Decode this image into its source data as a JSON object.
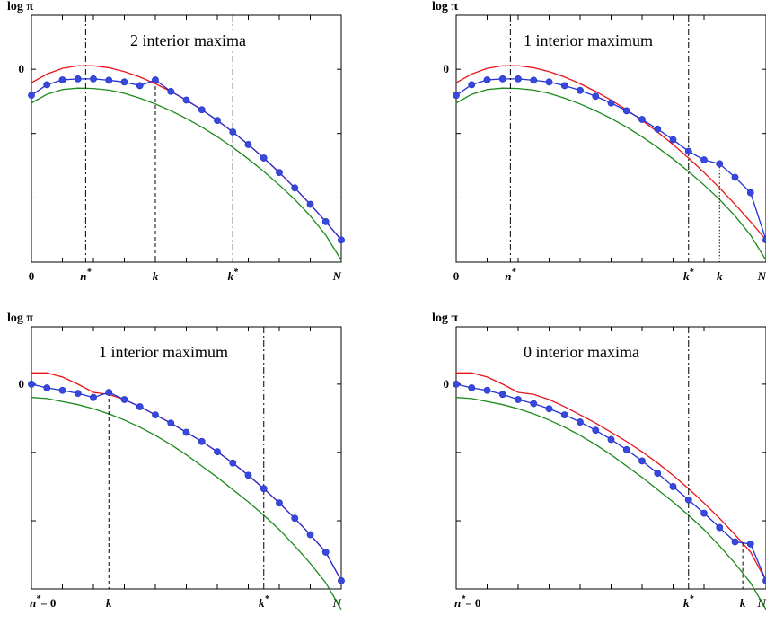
{
  "chart_data": [
    {
      "type": "line",
      "title": "2 interior maxima",
      "ylabel": "log π",
      "x": [
        0,
        1,
        2,
        3,
        4,
        5,
        6,
        7,
        8,
        9,
        10,
        11,
        12,
        13,
        14,
        15,
        16,
        17,
        18,
        19,
        20
      ],
      "ylim": [
        -1.0,
        0.28
      ],
      "ytick_labels": [
        {
          "value": 0,
          "label": "0"
        }
      ],
      "yticks": [
        0,
        -0.333,
        -0.667,
        -1.0
      ],
      "xtick_labels": [
        {
          "value": 0,
          "text": "0",
          "style": "plain"
        },
        {
          "value": 3.5,
          "text": "n*",
          "style": "star"
        },
        {
          "value": 8,
          "text": "k",
          "style": "plain"
        },
        {
          "value": 13,
          "text": "k*",
          "style": "star"
        },
        {
          "value": 20,
          "text": "N",
          "style": "plain"
        }
      ],
      "vlines": [
        {
          "x": 3.5,
          "style": "dashdot",
          "to_curve": false
        },
        {
          "x": 8,
          "style": "dashed",
          "to_curve": true
        },
        {
          "x": 13,
          "style": "dashdot",
          "to_curve": false
        }
      ],
      "series": [
        {
          "color": "#e8141a",
          "markers": false,
          "values": [
            -0.07,
            -0.025,
            0.005,
            0.018,
            0.018,
            0.008,
            -0.012,
            -0.04,
            -0.075,
            -0.115,
            -0.16,
            -0.21,
            -0.265,
            -0.325,
            -0.39,
            -0.46,
            -0.535,
            -0.615,
            -0.7,
            -0.79,
            -0.885
          ]
        },
        {
          "color": "#2030d8",
          "markers": true,
          "values": [
            -0.135,
            -0.08,
            -0.055,
            -0.05,
            -0.05,
            -0.057,
            -0.066,
            -0.085,
            -0.055,
            -0.115,
            -0.16,
            -0.21,
            -0.265,
            -0.325,
            -0.39,
            -0.46,
            -0.535,
            -0.615,
            -0.7,
            -0.79,
            -0.885
          ]
        },
        {
          "color": "#1a8a1a",
          "markers": false,
          "values": [
            -0.175,
            -0.13,
            -0.105,
            -0.098,
            -0.1,
            -0.108,
            -0.125,
            -0.15,
            -0.18,
            -0.215,
            -0.255,
            -0.3,
            -0.35,
            -0.405,
            -0.465,
            -0.53,
            -0.6,
            -0.675,
            -0.76,
            -0.86,
            -0.99
          ]
        }
      ]
    },
    {
      "type": "line",
      "title": "1 interior maximum",
      "ylabel": "log π",
      "x": [
        0,
        1,
        2,
        3,
        4,
        5,
        6,
        7,
        8,
        9,
        10,
        11,
        12,
        13,
        14,
        15,
        16,
        17,
        18,
        19,
        20
      ],
      "ylim": [
        -1.0,
        0.28
      ],
      "ytick_labels": [
        {
          "value": 0,
          "label": "0"
        }
      ],
      "yticks": [
        0,
        -0.333,
        -0.667,
        -1.0
      ],
      "xtick_labels": [
        {
          "value": 0,
          "text": "0",
          "style": "plain"
        },
        {
          "value": 3.5,
          "text": "n*",
          "style": "star"
        },
        {
          "value": 15,
          "text": "k*",
          "style": "star"
        },
        {
          "value": 17,
          "text": "k",
          "style": "plain"
        },
        {
          "value": 20,
          "text": "N",
          "style": "plain"
        }
      ],
      "vlines": [
        {
          "x": 3.5,
          "style": "dashdot",
          "to_curve": false
        },
        {
          "x": 15,
          "style": "dashdot",
          "to_curve": false
        },
        {
          "x": 17,
          "style": "dotted",
          "to_curve": true
        }
      ],
      "series": [
        {
          "color": "#e8141a",
          "markers": false,
          "values": [
            -0.07,
            -0.025,
            0.005,
            0.018,
            0.018,
            0.008,
            -0.012,
            -0.04,
            -0.075,
            -0.115,
            -0.16,
            -0.21,
            -0.265,
            -0.325,
            -0.39,
            -0.46,
            -0.535,
            -0.615,
            -0.7,
            -0.79,
            -0.885
          ]
        },
        {
          "color": "#2030d8",
          "markers": true,
          "values": [
            -0.135,
            -0.08,
            -0.055,
            -0.05,
            -0.05,
            -0.057,
            -0.066,
            -0.085,
            -0.11,
            -0.14,
            -0.175,
            -0.215,
            -0.26,
            -0.31,
            -0.365,
            -0.425,
            -0.47,
            -0.49,
            -0.56,
            -0.64,
            -0.885
          ]
        },
        {
          "color": "#1a8a1a",
          "markers": false,
          "values": [
            -0.175,
            -0.13,
            -0.105,
            -0.098,
            -0.1,
            -0.108,
            -0.125,
            -0.15,
            -0.18,
            -0.215,
            -0.255,
            -0.3,
            -0.35,
            -0.405,
            -0.465,
            -0.53,
            -0.6,
            -0.675,
            -0.76,
            -0.86,
            -0.99
          ]
        }
      ]
    },
    {
      "type": "line",
      "title": "1 interior maximum",
      "ylabel": "log π",
      "x": [
        0,
        1,
        2,
        3,
        4,
        5,
        6,
        7,
        8,
        9,
        10,
        11,
        12,
        13,
        14,
        15,
        16,
        17,
        18,
        19,
        20
      ],
      "ylim": [
        -1.0,
        0.28
      ],
      "ytick_labels": [
        {
          "value": 0,
          "label": "0"
        }
      ],
      "yticks": [
        0,
        -0.333,
        -0.667,
        -1.0
      ],
      "xtick_labels": [
        {
          "value": 0,
          "text": "n*= 0",
          "style": "nzero"
        },
        {
          "value": 5,
          "text": "k",
          "style": "plain"
        },
        {
          "value": 15,
          "text": "k*",
          "style": "star"
        },
        {
          "value": 20,
          "text": "N",
          "style": "plain"
        }
      ],
      "vlines": [
        {
          "x": 5,
          "style": "dashed",
          "to_curve": true
        },
        {
          "x": 15,
          "style": "dashdot",
          "to_curve": false
        }
      ],
      "series": [
        {
          "color": "#e8141a",
          "markers": false,
          "values": [
            0.055,
            0.055,
            0.035,
            0.0,
            -0.04,
            -0.05,
            -0.075,
            -0.11,
            -0.15,
            -0.19,
            -0.235,
            -0.28,
            -0.33,
            -0.385,
            -0.445,
            -0.51,
            -0.58,
            -0.655,
            -0.735,
            -0.82,
            -0.96
          ]
        },
        {
          "color": "#2030d8",
          "markers": true,
          "values": [
            0.0,
            -0.018,
            -0.03,
            -0.045,
            -0.065,
            -0.04,
            -0.075,
            -0.11,
            -0.15,
            -0.19,
            -0.235,
            -0.28,
            -0.33,
            -0.385,
            -0.445,
            -0.51,
            -0.58,
            -0.655,
            -0.735,
            -0.82,
            -0.96
          ]
        },
        {
          "color": "#1a8a1a",
          "markers": false,
          "values": [
            -0.065,
            -0.07,
            -0.085,
            -0.1,
            -0.12,
            -0.145,
            -0.175,
            -0.21,
            -0.25,
            -0.295,
            -0.345,
            -0.4,
            -0.455,
            -0.515,
            -0.575,
            -0.64,
            -0.71,
            -0.79,
            -0.875,
            -0.97,
            -1.1
          ]
        }
      ]
    },
    {
      "type": "line",
      "title": "0 interior maxima",
      "ylabel": "log π",
      "x": [
        0,
        1,
        2,
        3,
        4,
        5,
        6,
        7,
        8,
        9,
        10,
        11,
        12,
        13,
        14,
        15,
        16,
        17,
        18,
        19,
        20
      ],
      "ylim": [
        -1.0,
        0.28
      ],
      "ytick_labels": [
        {
          "value": 0,
          "label": "0"
        }
      ],
      "yticks": [
        0,
        -0.333,
        -0.667,
        -1.0
      ],
      "xtick_labels": [
        {
          "value": 0,
          "text": "n*= 0",
          "style": "nzero"
        },
        {
          "value": 15,
          "text": "k*",
          "style": "star"
        },
        {
          "value": 18.5,
          "text": "k",
          "style": "plain"
        },
        {
          "value": 20,
          "text": "N",
          "style": "plain"
        }
      ],
      "vlines": [
        {
          "x": 15,
          "style": "dashdot",
          "to_curve": false
        },
        {
          "x": 18.5,
          "style": "dashed",
          "to_curve": true
        }
      ],
      "series": [
        {
          "color": "#e8141a",
          "markers": false,
          "values": [
            0.055,
            0.055,
            0.035,
            0.0,
            -0.04,
            -0.05,
            -0.075,
            -0.11,
            -0.15,
            -0.19,
            -0.235,
            -0.28,
            -0.33,
            -0.385,
            -0.445,
            -0.51,
            -0.58,
            -0.655,
            -0.735,
            -0.82,
            -0.96
          ]
        },
        {
          "color": "#2030d8",
          "markers": true,
          "values": [
            0.0,
            -0.018,
            -0.03,
            -0.05,
            -0.075,
            -0.095,
            -0.12,
            -0.15,
            -0.185,
            -0.225,
            -0.27,
            -0.32,
            -0.375,
            -0.435,
            -0.5,
            -0.565,
            -0.63,
            -0.7,
            -0.77,
            -0.78,
            -0.96
          ]
        },
        {
          "color": "#1a8a1a",
          "markers": false,
          "values": [
            -0.065,
            -0.07,
            -0.085,
            -0.1,
            -0.12,
            -0.145,
            -0.175,
            -0.21,
            -0.25,
            -0.295,
            -0.345,
            -0.4,
            -0.455,
            -0.515,
            -0.575,
            -0.64,
            -0.71,
            -0.79,
            -0.875,
            -0.97,
            -1.1
          ]
        }
      ]
    }
  ]
}
